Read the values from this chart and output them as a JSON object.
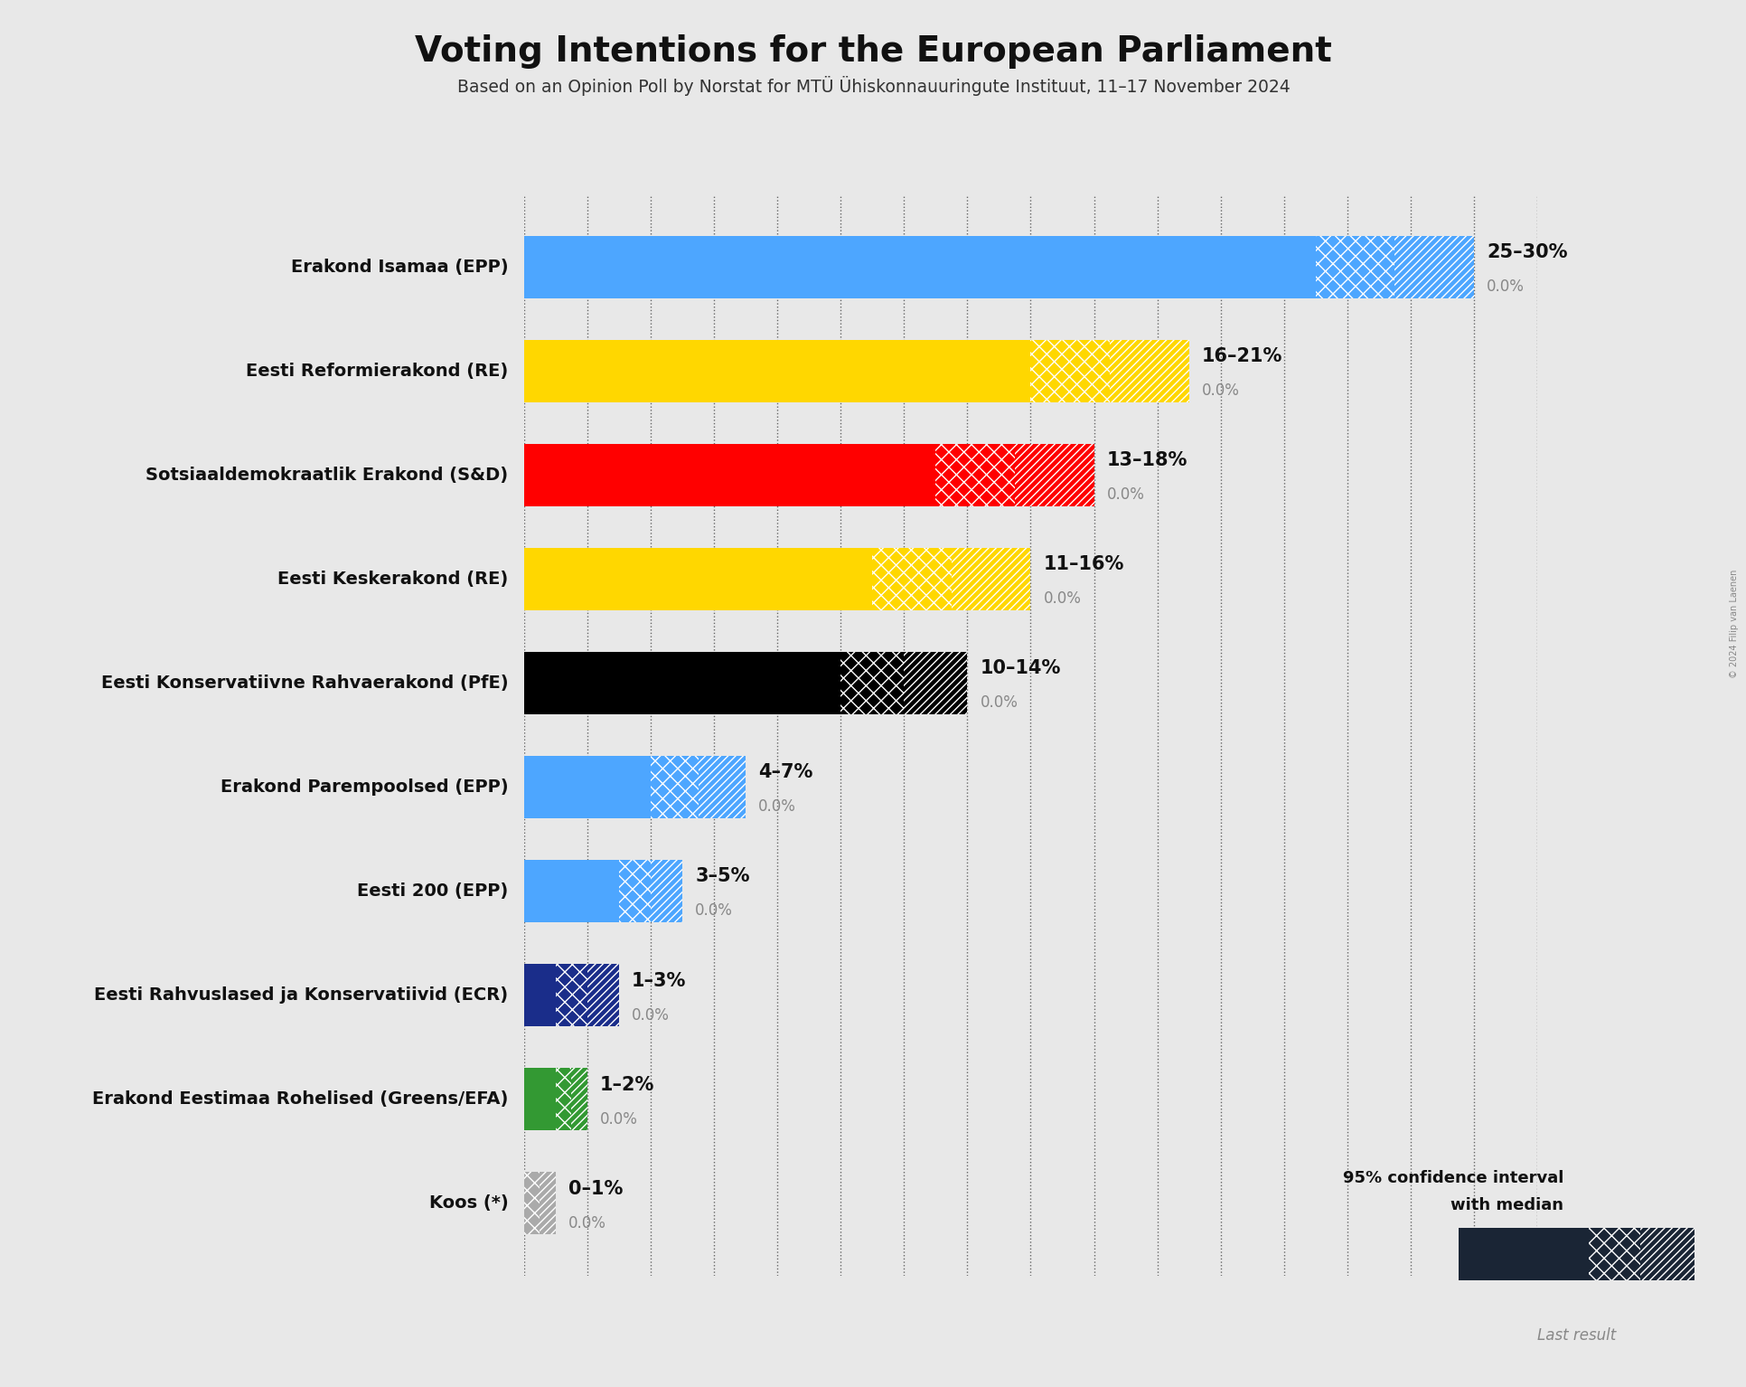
{
  "title": "Voting Intentions for the European Parliament",
  "subtitle": "Based on an Opinion Poll by Norstat for MTÜ Ühiskonnauuringute Instituut, 11–17 November 2024",
  "copyright": "© 2024 Filip van Laenen",
  "background_color": "#e8e8e8",
  "parties": [
    {
      "label": "Erakond Isamaa (EPP)",
      "low": 25,
      "high": 30,
      "median": 27.5,
      "last": 0.0,
      "color": "#4da6ff",
      "dark_color": "#1a3a5c",
      "range_label": "25–30%"
    },
    {
      "label": "Eesti Reformierakond (RE)",
      "low": 16,
      "high": 21,
      "median": 18.5,
      "last": 0.0,
      "color": "#FFD700",
      "dark_color": "#997f00",
      "range_label": "16–21%"
    },
    {
      "label": "Sotsiaaldemokraatlik Erakond (S&D)",
      "low": 13,
      "high": 18,
      "median": 15.5,
      "last": 0.0,
      "color": "#FF0000",
      "dark_color": "#990000",
      "range_label": "13–18%"
    },
    {
      "label": "Eesti Keskerakond (RE)",
      "low": 11,
      "high": 16,
      "median": 13.5,
      "last": 0.0,
      "color": "#FFD700",
      "dark_color": "#997f00",
      "range_label": "11–16%"
    },
    {
      "label": "Eesti Konservatiivne Rahvaerakond (PfE)",
      "low": 10,
      "high": 14,
      "median": 12.0,
      "last": 0.0,
      "color": "#000000",
      "dark_color": "#000000",
      "range_label": "10–14%"
    },
    {
      "label": "Erakond Parempoolsed (EPP)",
      "low": 4,
      "high": 7,
      "median": 5.5,
      "last": 0.0,
      "color": "#4da6ff",
      "dark_color": "#1a3a5c",
      "range_label": "4–7%"
    },
    {
      "label": "Eesti 200 (EPP)",
      "low": 3,
      "high": 5,
      "median": 4.0,
      "last": 0.0,
      "color": "#4da6ff",
      "dark_color": "#1a3a5c",
      "range_label": "3–5%"
    },
    {
      "label": "Eesti Rahvuslased ja Konservatiivid (ECR)",
      "low": 1,
      "high": 3,
      "median": 2.0,
      "last": 0.0,
      "color": "#1a2d8a",
      "dark_color": "#0f1a50",
      "range_label": "1–3%"
    },
    {
      "label": "Erakond Eestimaa Rohelised (Greens/EFA)",
      "low": 1,
      "high": 2,
      "median": 1.5,
      "last": 0.0,
      "color": "#339933",
      "dark_color": "#1a5c1a",
      "range_label": "1–2%"
    },
    {
      "label": "Koos (*)",
      "low": 0,
      "high": 1,
      "median": 0.5,
      "last": 0.0,
      "color": "#aaaaaa",
      "dark_color": "#666666",
      "range_label": "0–1%"
    }
  ],
  "xlim": [
    0,
    32
  ],
  "bar_height": 0.6,
  "legend_dark_color": "#1a2535",
  "legend_label1": "95% confidence interval",
  "legend_label2": "with median",
  "legend_label3": "Last result"
}
